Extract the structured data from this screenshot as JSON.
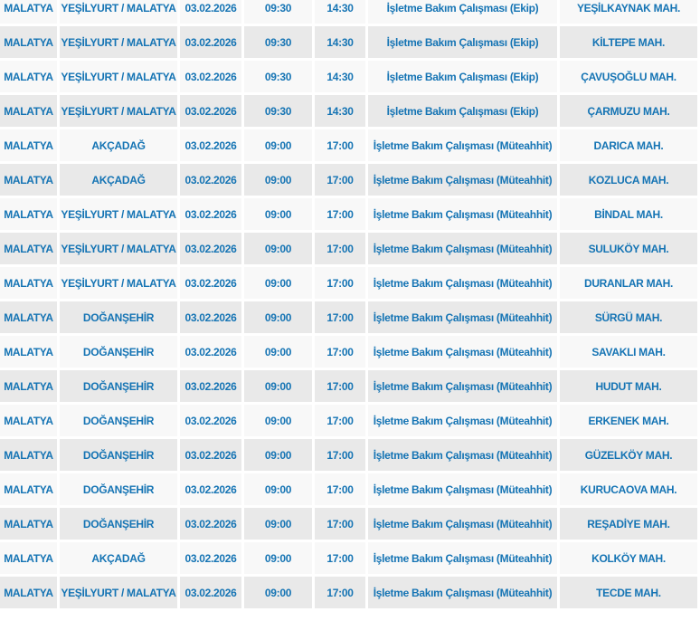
{
  "colors": {
    "text_blue": "#1574b4",
    "row_light": "#f8f8f8",
    "row_dark": "#e9e9e9",
    "separator": "#ffffff"
  },
  "table": {
    "rows": [
      {
        "city": "MALATYA",
        "district": "YEŞİLYURT / MALATYA",
        "date": "03.02.2026",
        "start_time": "09:30",
        "end_time": "14:30",
        "work_type": "İşletme Bakım Çalışması (Ekip)",
        "neighborhood": "YEŞİLKAYNAK MAH."
      },
      {
        "city": "MALATYA",
        "district": "YEŞİLYURT / MALATYA",
        "date": "03.02.2026",
        "start_time": "09:30",
        "end_time": "14:30",
        "work_type": "İşletme Bakım Çalışması (Ekip)",
        "neighborhood": "KİLTEPE MAH."
      },
      {
        "city": "MALATYA",
        "district": "YEŞİLYURT / MALATYA",
        "date": "03.02.2026",
        "start_time": "09:30",
        "end_time": "14:30",
        "work_type": "İşletme Bakım Çalışması (Ekip)",
        "neighborhood": "ÇAVUŞOĞLU MAH."
      },
      {
        "city": "MALATYA",
        "district": "YEŞİLYURT / MALATYA",
        "date": "03.02.2026",
        "start_time": "09:30",
        "end_time": "14:30",
        "work_type": "İşletme Bakım Çalışması (Ekip)",
        "neighborhood": "ÇARMUZU MAH."
      },
      {
        "city": "MALATYA",
        "district": "AKÇADAĞ",
        "date": "03.02.2026",
        "start_time": "09:00",
        "end_time": "17:00",
        "work_type": "İşletme Bakım Çalışması (Müteahhit)",
        "neighborhood": "DARICA MAH."
      },
      {
        "city": "MALATYA",
        "district": "AKÇADAĞ",
        "date": "03.02.2026",
        "start_time": "09:00",
        "end_time": "17:00",
        "work_type": "İşletme Bakım Çalışması (Müteahhit)",
        "neighborhood": "KOZLUCA MAH."
      },
      {
        "city": "MALATYA",
        "district": "YEŞİLYURT / MALATYA",
        "date": "03.02.2026",
        "start_time": "09:00",
        "end_time": "17:00",
        "work_type": "İşletme Bakım Çalışması (Müteahhit)",
        "neighborhood": "BİNDAL MAH."
      },
      {
        "city": "MALATYA",
        "district": "YEŞİLYURT / MALATYA",
        "date": "03.02.2026",
        "start_time": "09:00",
        "end_time": "17:00",
        "work_type": "İşletme Bakım Çalışması (Müteahhit)",
        "neighborhood": "SULUKÖY MAH."
      },
      {
        "city": "MALATYA",
        "district": "YEŞİLYURT / MALATYA",
        "date": "03.02.2026",
        "start_time": "09:00",
        "end_time": "17:00",
        "work_type": "İşletme Bakım Çalışması (Müteahhit)",
        "neighborhood": "DURANLAR MAH."
      },
      {
        "city": "MALATYA",
        "district": "DOĞANŞEHİR",
        "date": "03.02.2026",
        "start_time": "09:00",
        "end_time": "17:00",
        "work_type": "İşletme Bakım Çalışması (Müteahhit)",
        "neighborhood": "SÜRGÜ MAH."
      },
      {
        "city": "MALATYA",
        "district": "DOĞANŞEHİR",
        "date": "03.02.2026",
        "start_time": "09:00",
        "end_time": "17:00",
        "work_type": "İşletme Bakım Çalışması (Müteahhit)",
        "neighborhood": "SAVAKLI MAH."
      },
      {
        "city": "MALATYA",
        "district": "DOĞANŞEHİR",
        "date": "03.02.2026",
        "start_time": "09:00",
        "end_time": "17:00",
        "work_type": "İşletme Bakım Çalışması (Müteahhit)",
        "neighborhood": "HUDUT MAH."
      },
      {
        "city": "MALATYA",
        "district": "DOĞANŞEHİR",
        "date": "03.02.2026",
        "start_time": "09:00",
        "end_time": "17:00",
        "work_type": "İşletme Bakım Çalışması (Müteahhit)",
        "neighborhood": "ERKENEK MAH."
      },
      {
        "city": "MALATYA",
        "district": "DOĞANŞEHİR",
        "date": "03.02.2026",
        "start_time": "09:00",
        "end_time": "17:00",
        "work_type": "İşletme Bakım Çalışması (Müteahhit)",
        "neighborhood": "GÜZELKÖY MAH."
      },
      {
        "city": "MALATYA",
        "district": "DOĞANŞEHİR",
        "date": "03.02.2026",
        "start_time": "09:00",
        "end_time": "17:00",
        "work_type": "İşletme Bakım Çalışması (Müteahhit)",
        "neighborhood": "KURUCAOVA MAH."
      },
      {
        "city": "MALATYA",
        "district": "DOĞANŞEHİR",
        "date": "03.02.2026",
        "start_time": "09:00",
        "end_time": "17:00",
        "work_type": "İşletme Bakım Çalışması (Müteahhit)",
        "neighborhood": "REŞADİYE MAH."
      },
      {
        "city": "MALATYA",
        "district": "AKÇADAĞ",
        "date": "03.02.2026",
        "start_time": "09:00",
        "end_time": "17:00",
        "work_type": "İşletme Bakım Çalışması (Müteahhit)",
        "neighborhood": "KOLKÖY MAH."
      },
      {
        "city": "MALATYA",
        "district": "YEŞİLYURT / MALATYA",
        "date": "03.02.2026",
        "start_time": "09:00",
        "end_time": "17:00",
        "work_type": "İşletme Bakım Çalışması (Müteahhit)",
        "neighborhood": "TECDE MAH."
      }
    ]
  }
}
